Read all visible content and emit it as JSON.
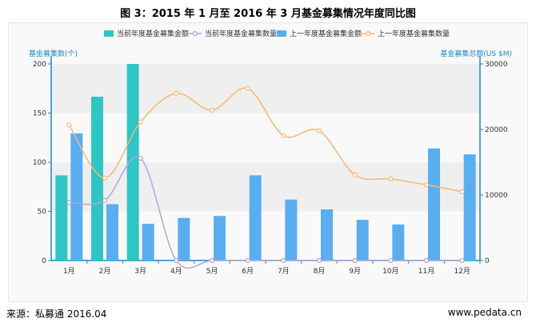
{
  "title": "图 3：2015 年 1 月至 2016 年 3 月基金募集情况年度同比图",
  "footer": {
    "source": "来源：私募通  2016.04",
    "site": "www.pedata.cn"
  },
  "colors": {
    "cur_amount": "#2fc5c4",
    "cur_count": "#b3a5d8",
    "prev_amount": "#5aaeef",
    "prev_count": "#f6b67a",
    "axis": "#1e88c8",
    "band": "#efefef"
  },
  "chart_data": {
    "type": "bar",
    "categories": [
      "1月",
      "2月",
      "3月",
      "4月",
      "5月",
      "6月",
      "7月",
      "8月",
      "9月",
      "10月",
      "11月",
      "12月"
    ],
    "left_axis": {
      "label": "基金募集数(个)",
      "ticks": [
        0,
        50,
        100,
        150,
        200
      ],
      "range": [
        0,
        200
      ]
    },
    "right_axis": {
      "label": "基金募集总额(US $M)",
      "ticks": [
        0,
        10000,
        20000,
        30000
      ],
      "range": [
        0,
        30000
      ]
    },
    "legend": {
      "position": "top"
    },
    "series": [
      {
        "name": "当前年度基金募集金额",
        "kind": "bar",
        "axis": "right",
        "values": [
          13000,
          25000,
          30000,
          null,
          null,
          null,
          null,
          null,
          null,
          null,
          null,
          null
        ]
      },
      {
        "name": "当前年度基金募集数量",
        "kind": "line",
        "axis": "left",
        "values": [
          59,
          61,
          104,
          0,
          0,
          0,
          0,
          0,
          0,
          0,
          0,
          0
        ]
      },
      {
        "name": "上一年度基金募集金额",
        "kind": "bar",
        "axis": "right",
        "values": [
          19400,
          8600,
          5600,
          6500,
          6800,
          13000,
          9300,
          7800,
          6200,
          5500,
          17100,
          16200
        ]
      },
      {
        "name": "上一年度基金募集数量",
        "kind": "line",
        "axis": "left",
        "values": [
          138,
          84,
          141,
          170,
          153,
          175,
          127,
          132,
          87,
          83,
          77,
          70
        ]
      }
    ]
  }
}
